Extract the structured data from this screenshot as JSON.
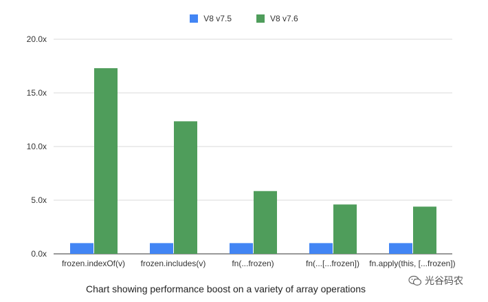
{
  "chart_data": {
    "type": "bar",
    "categories": [
      "frozen.indexOf(v)",
      "frozen.includes(v)",
      "fn(...frozen)",
      "fn(...[...frozen])",
      "fn.apply(this, [...frozen])"
    ],
    "series": [
      {
        "name": "V8 v7.5",
        "color": "#4285f4",
        "values": [
          1.0,
          1.0,
          1.0,
          1.0,
          1.0
        ]
      },
      {
        "name": "V8 v7.6",
        "color": "#4f9d5b",
        "values": [
          17.3,
          12.35,
          5.85,
          4.6,
          4.4
        ]
      }
    ],
    "ylim": [
      0,
      20
    ],
    "yticks": [
      "0.0x",
      "5.0x",
      "10.0x",
      "15.0x",
      "20.0x"
    ],
    "ytick_values": [
      0,
      5,
      10,
      15,
      20
    ],
    "grid": true,
    "legend": "top",
    "caption": "Chart showing performance boost on a variety of array operations"
  },
  "watermark": {
    "text": "光谷码农",
    "icon": "wechat-icon"
  }
}
